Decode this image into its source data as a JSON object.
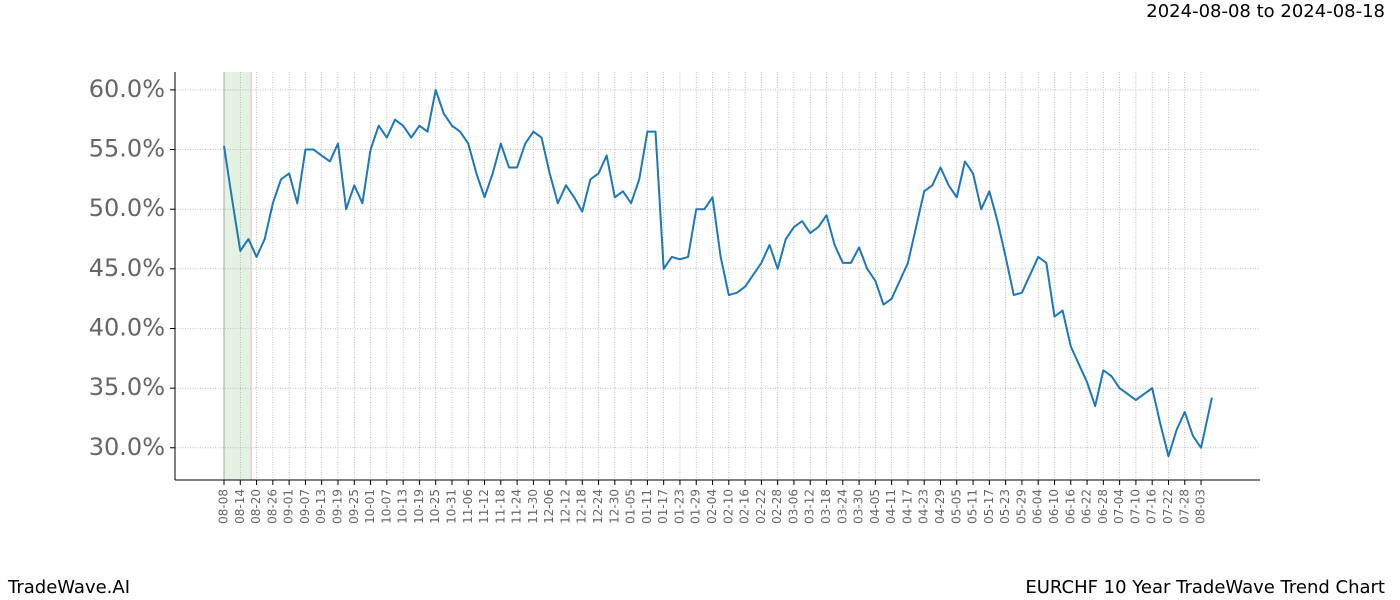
{
  "chart_data": {
    "type": "line",
    "subtitle": "2024-08-08 to 2024-08-18",
    "brand": "TradeWave.AI",
    "title": "EURCHF 10 Year TradeWave Trend Chart",
    "highlight": [
      "08-08",
      "08-18"
    ],
    "highlight_color": "#d9ecd9",
    "grid": true,
    "x": [
      "08-08",
      "08-11",
      "08-14",
      "08-17",
      "08-20",
      "08-23",
      "08-26",
      "08-29",
      "09-01",
      "09-04",
      "09-07",
      "09-10",
      "09-13",
      "09-16",
      "09-19",
      "09-22",
      "09-25",
      "09-28",
      "10-01",
      "10-04",
      "10-07",
      "10-10",
      "10-13",
      "10-16",
      "10-19",
      "10-22",
      "10-25",
      "10-28",
      "10-31",
      "11-03",
      "11-06",
      "11-09",
      "11-12",
      "11-15",
      "11-18",
      "11-21",
      "11-24",
      "11-27",
      "11-30",
      "12-03",
      "12-06",
      "12-09",
      "12-12",
      "12-15",
      "12-18",
      "12-21",
      "12-24",
      "12-27",
      "12-30",
      "01-02",
      "01-05",
      "01-08",
      "01-11",
      "01-14",
      "01-17",
      "01-20",
      "01-23",
      "01-26",
      "01-29",
      "02-01",
      "02-04",
      "02-07",
      "02-10",
      "02-13",
      "02-16",
      "02-19",
      "02-22",
      "02-25",
      "02-28",
      "03-03",
      "03-06",
      "03-09",
      "03-12",
      "03-15",
      "03-18",
      "03-21",
      "03-24",
      "03-27",
      "03-30",
      "04-02",
      "04-05",
      "04-08",
      "04-11",
      "04-14",
      "04-17",
      "04-20",
      "04-23",
      "04-26",
      "04-29",
      "05-02",
      "05-05",
      "05-08",
      "05-11",
      "05-14",
      "05-17",
      "05-20",
      "05-23",
      "05-26",
      "05-29",
      "06-01",
      "06-04",
      "06-07",
      "06-10",
      "06-13",
      "06-16",
      "06-19",
      "06-22",
      "06-25",
      "06-28",
      "07-01",
      "07-04",
      "07-07",
      "07-10",
      "07-13",
      "07-16",
      "07-19",
      "07-22",
      "07-25",
      "07-28",
      "07-31",
      "08-03",
      "08-07"
    ],
    "series": [
      {
        "name": "EURCHF",
        "color": "#1f77b4",
        "values": [
          55.3,
          50.8,
          46.5,
          47.5,
          46.0,
          47.5,
          50.5,
          52.5,
          53.0,
          50.5,
          55.0,
          55.0,
          54.5,
          54.0,
          55.5,
          50.0,
          52.0,
          50.5,
          55.0,
          57.0,
          56.0,
          57.5,
          57.0,
          56.0,
          57.0,
          56.5,
          60.0,
          58.0,
          57.0,
          56.5,
          55.5,
          53.0,
          51.0,
          53.0,
          55.5,
          53.5,
          53.5,
          55.5,
          56.5,
          56.0,
          53.0,
          50.5,
          52.0,
          51.0,
          49.8,
          52.5,
          53.0,
          54.5,
          51.0,
          51.5,
          50.5,
          52.5,
          56.5,
          56.5,
          45.0,
          46.0,
          45.8,
          46.0,
          50.0,
          50.0,
          51.0,
          46.0,
          42.8,
          43.0,
          43.5,
          44.5,
          45.5,
          47.0,
          45.0,
          47.5,
          48.5,
          49.0,
          48.0,
          48.5,
          49.5,
          47.0,
          45.5,
          45.5,
          46.8,
          45.0,
          44.0,
          42.0,
          42.5,
          44.0,
          45.5,
          48.5,
          51.5,
          52.0,
          53.5,
          52.0,
          51.0,
          54.0,
          53.0,
          50.0,
          51.5,
          49.0,
          46.0,
          42.8,
          43.0,
          44.5,
          46.0,
          45.5,
          41.0,
          41.5,
          38.5,
          37.0,
          35.5,
          33.5,
          36.5,
          36.0,
          35.0,
          34.5,
          34.0,
          34.5,
          35.0,
          32.0,
          29.3,
          31.5,
          33.0,
          31.0,
          30.0,
          34.2
        ]
      }
    ],
    "xticks": [
      "08-08",
      "08-14",
      "08-20",
      "08-26",
      "09-01",
      "09-07",
      "09-13",
      "09-19",
      "09-25",
      "10-01",
      "10-07",
      "10-13",
      "10-19",
      "10-25",
      "10-31",
      "11-06",
      "11-12",
      "11-18",
      "11-24",
      "11-30",
      "12-06",
      "12-12",
      "12-18",
      "12-24",
      "12-30",
      "01-05",
      "01-11",
      "01-17",
      "01-23",
      "01-29",
      "02-04",
      "02-10",
      "02-16",
      "02-22",
      "02-28",
      "03-06",
      "03-12",
      "03-18",
      "03-24",
      "03-30",
      "04-05",
      "04-11",
      "04-17",
      "04-23",
      "04-29",
      "05-05",
      "05-11",
      "05-17",
      "05-23",
      "05-29",
      "06-04",
      "06-10",
      "06-16",
      "06-22",
      "06-28",
      "07-04",
      "07-10",
      "07-16",
      "07-22",
      "07-28",
      "08-03"
    ],
    "ylim": [
      27.3,
      61.5
    ],
    "yticks": [
      {
        "value": 30,
        "label": "30.0%"
      },
      {
        "value": 35,
        "label": "35.0%"
      },
      {
        "value": 40,
        "label": "40.0%"
      },
      {
        "value": 45,
        "label": "45.0%"
      },
      {
        "value": 50,
        "label": "50.0%"
      },
      {
        "value": 55,
        "label": "55.0%"
      },
      {
        "value": 60,
        "label": "60.0%"
      }
    ]
  }
}
